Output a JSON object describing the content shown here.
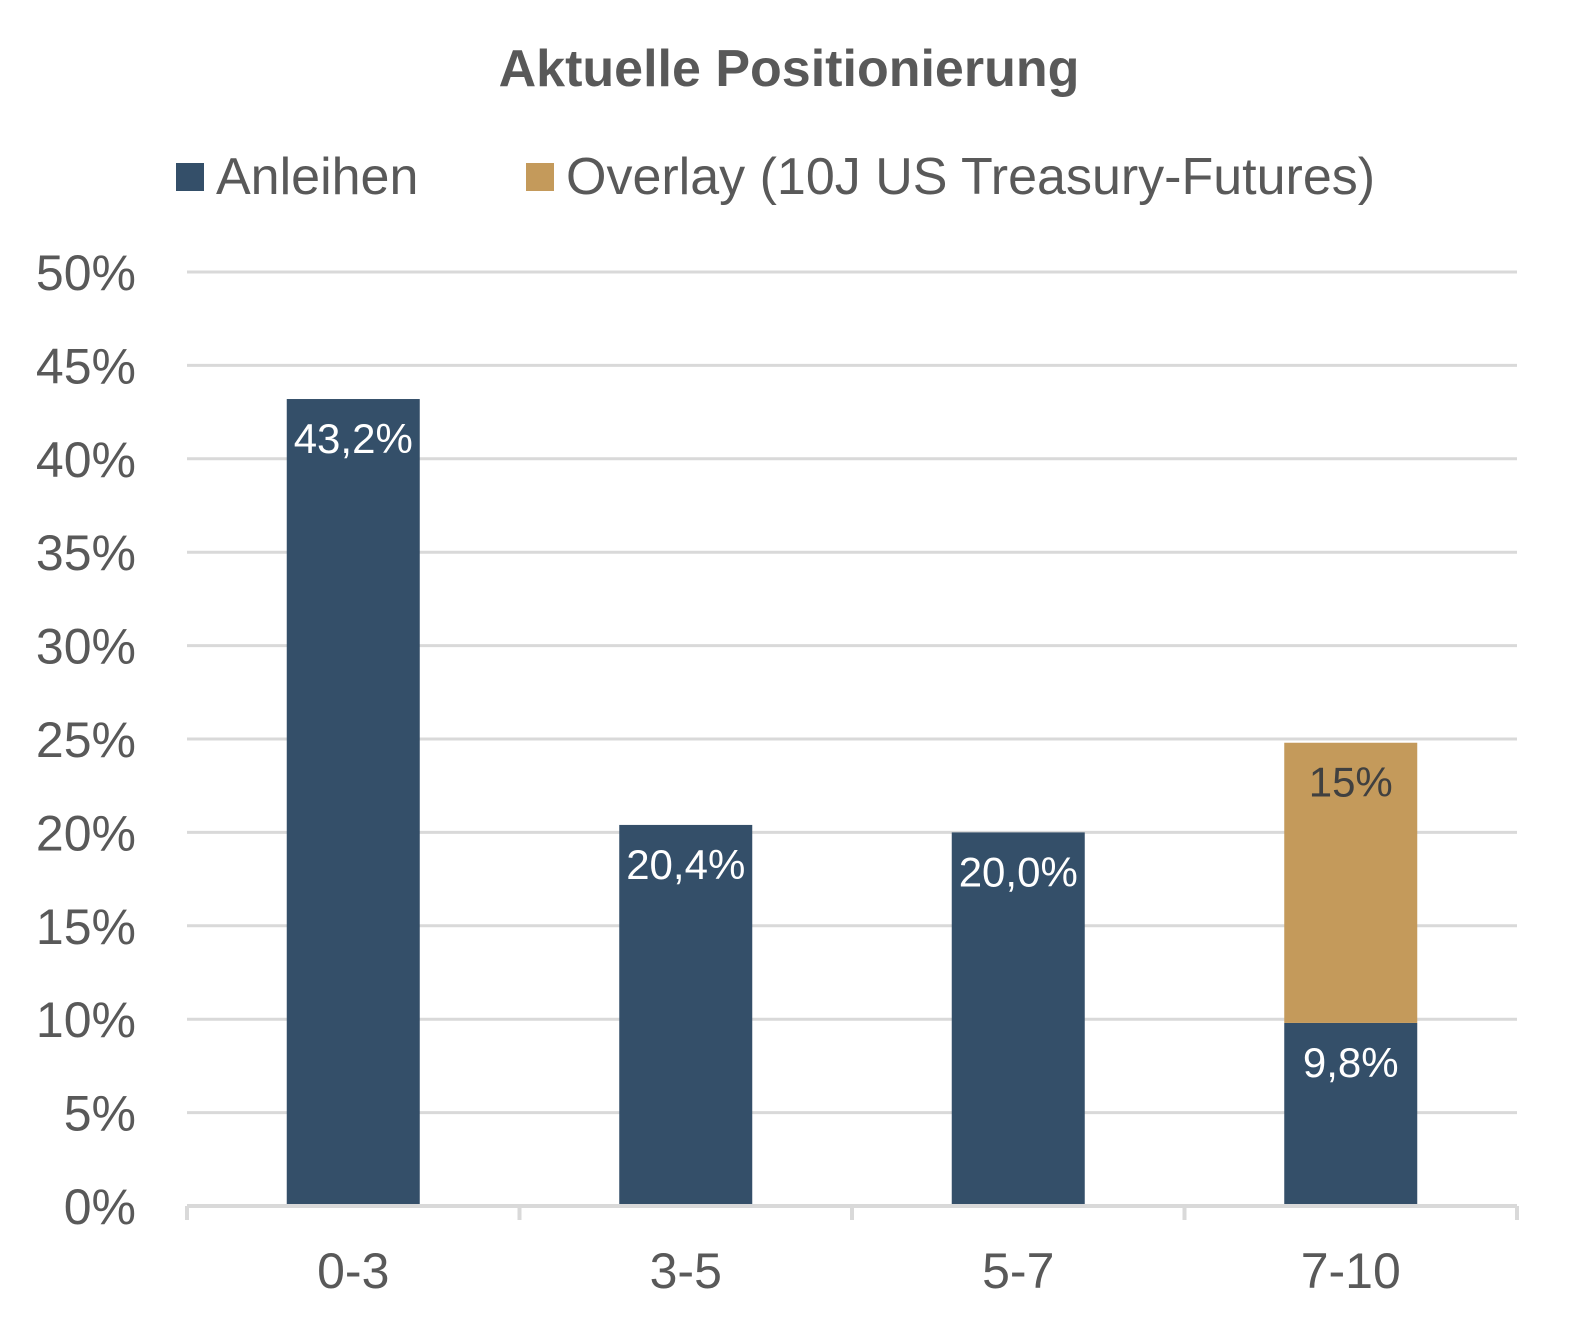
{
  "chart_data": {
    "type": "bar",
    "stacked": true,
    "title": "Aktuelle Positionierung",
    "categories": [
      "0-3",
      "3-5",
      "5-7",
      "7-10"
    ],
    "series": [
      {
        "name": "Anleihen",
        "color": "#344f69",
        "values": [
          43.2,
          20.4,
          20.0,
          9.8
        ],
        "labels": [
          "43,2%",
          "20,4%",
          "20,0%",
          "9,8%"
        ],
        "label_color": "#ffffff"
      },
      {
        "name": "Overlay (10J US Treasury-Futures)",
        "color": "#c49a5b",
        "values": [
          0,
          0,
          0,
          15
        ],
        "labels": [
          "",
          "",
          "",
          "15%"
        ],
        "label_color": "#404040"
      }
    ],
    "ylim": [
      0,
      50
    ],
    "yticks": [
      "0%",
      "5%",
      "10%",
      "15%",
      "20%",
      "25%",
      "30%",
      "35%",
      "40%",
      "45%",
      "50%"
    ],
    "grid": true,
    "legend_position": "top",
    "xlabel": "",
    "ylabel": ""
  }
}
